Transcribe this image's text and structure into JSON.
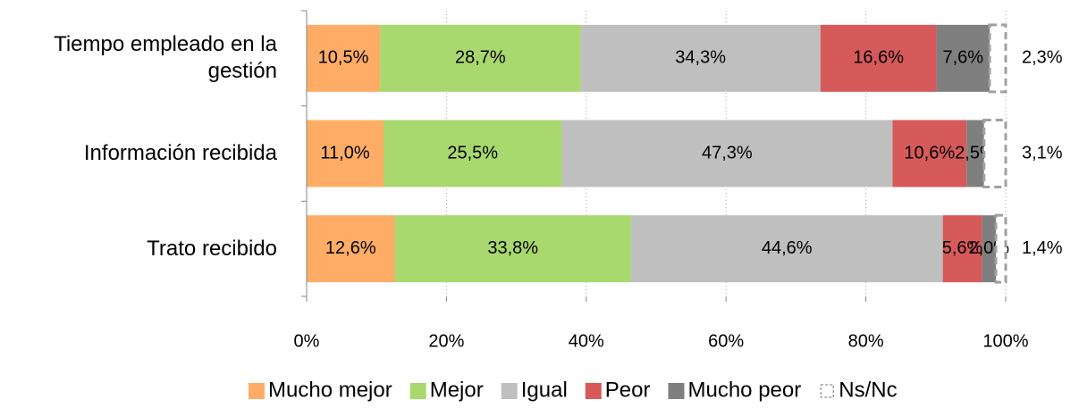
{
  "chart_data": {
    "type": "stacked_bar_horizontal",
    "categories": [
      "Tiempo empleado en la gestión",
      "Información recibida",
      "Trato recibido"
    ],
    "series": [
      {
        "name": "Mucho mejor",
        "color": "#ffad66",
        "values": [
          10.5,
          11.0,
          12.6
        ],
        "value_labels": [
          "10,5%",
          "11,0%",
          "12,6%"
        ]
      },
      {
        "name": "Mejor",
        "color": "#a9d86e",
        "values": [
          28.7,
          25.5,
          33.8
        ],
        "value_labels": [
          "28,7%",
          "25,5%",
          "33,8%"
        ]
      },
      {
        "name": "Igual",
        "color": "#bfbfbf",
        "values": [
          34.3,
          47.3,
          44.6
        ],
        "value_labels": [
          "34,3%",
          "47,3%",
          "44,6%"
        ]
      },
      {
        "name": "Peor",
        "color": "#d65a5a",
        "values": [
          16.6,
          10.6,
          5.6
        ],
        "value_labels": [
          "16,6%",
          "10,6%",
          "5,6%"
        ]
      },
      {
        "name": "Mucho peor",
        "color": "#7f7f7f",
        "values": [
          7.6,
          2.5,
          2.0
        ],
        "value_labels": [
          "7,6%",
          "2,5%",
          "2,0%"
        ]
      },
      {
        "name": "Ns/Nc",
        "color": "#ffffff",
        "values": [
          2.3,
          3.1,
          1.4
        ],
        "value_labels": [
          "2,3%",
          "3,1%",
          "1,4%"
        ]
      }
    ],
    "xlim": [
      0,
      100
    ],
    "xticks": [
      {
        "value": 0,
        "label": "0%"
      },
      {
        "value": 20,
        "label": "20%"
      },
      {
        "value": 40,
        "label": "40%"
      },
      {
        "value": 60,
        "label": "60%"
      },
      {
        "value": 80,
        "label": "80%"
      },
      {
        "value": 100,
        "label": "100%"
      }
    ],
    "grid": true,
    "legend": "bottom"
  }
}
